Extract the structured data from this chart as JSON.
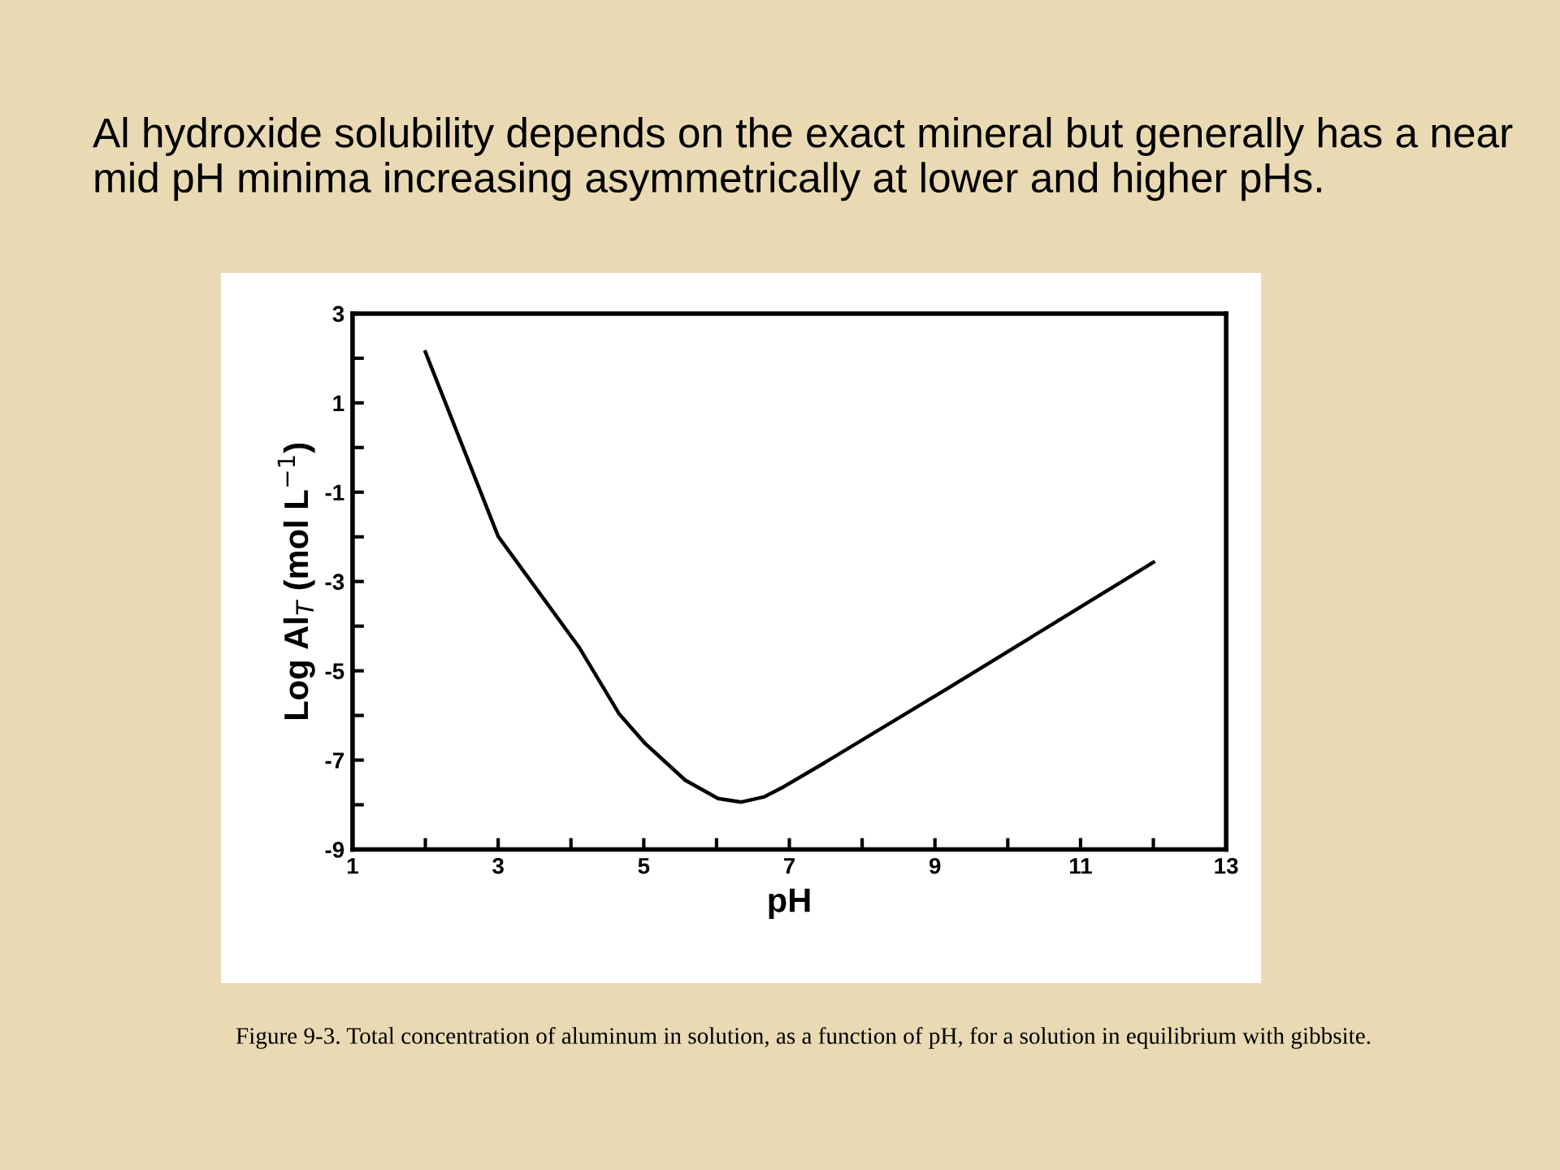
{
  "chart_data": {
    "type": "line",
    "title": "Al hydroxide solubility depends on the exact mineral but generally has a near mid pH minima increasing asymmetrically at lower and higher pHs.",
    "xlabel": "pH",
    "ylabel": "Log Al$_{T}$ (mol L$^{−1}$)",
    "annotations": [
      "Figure 9-3. Total concentration of aluminum in solution, as a function of pH, for a solution in equilibrium with gibbsite."
    ],
    "series": [
      {
        "color": "#000000",
        "x": [
          2.0,
          3.0,
          4.11,
          4.66,
          5.02,
          5.57,
          6.02,
          6.34,
          6.66,
          6.93,
          7.39,
          9.2,
          12.0
        ],
        "values": [
          2.14,
          -1.99,
          -4.47,
          -5.96,
          -6.63,
          -7.45,
          -7.86,
          -7.94,
          -7.82,
          -7.59,
          -7.15,
          -5.37,
          -2.57
        ]
      }
    ],
    "xlim": [
      1,
      13
    ],
    "ylim": [
      -9,
      3
    ],
    "xticks": [
      1,
      {
        "value": 2,
        "label": null
      },
      3,
      {
        "value": 4,
        "label": null
      },
      5,
      {
        "value": 6,
        "label": null
      },
      7,
      {
        "value": 8,
        "label": null
      },
      9,
      {
        "value": 10,
        "label": null
      },
      11,
      {
        "value": 12,
        "label": null
      },
      13
    ],
    "yticks": [
      -9,
      {
        "value": -8,
        "label": null
      },
      -7,
      {
        "value": -6,
        "label": null
      },
      -5,
      {
        "value": -4,
        "label": null
      },
      -3,
      {
        "value": -2,
        "label": null
      },
      -1,
      {
        "value": 0,
        "label": null
      },
      1,
      {
        "value": 2,
        "label": null
      },
      3
    ],
    "grid": false,
    "marker": "none",
    "line_style": "solid"
  }
}
